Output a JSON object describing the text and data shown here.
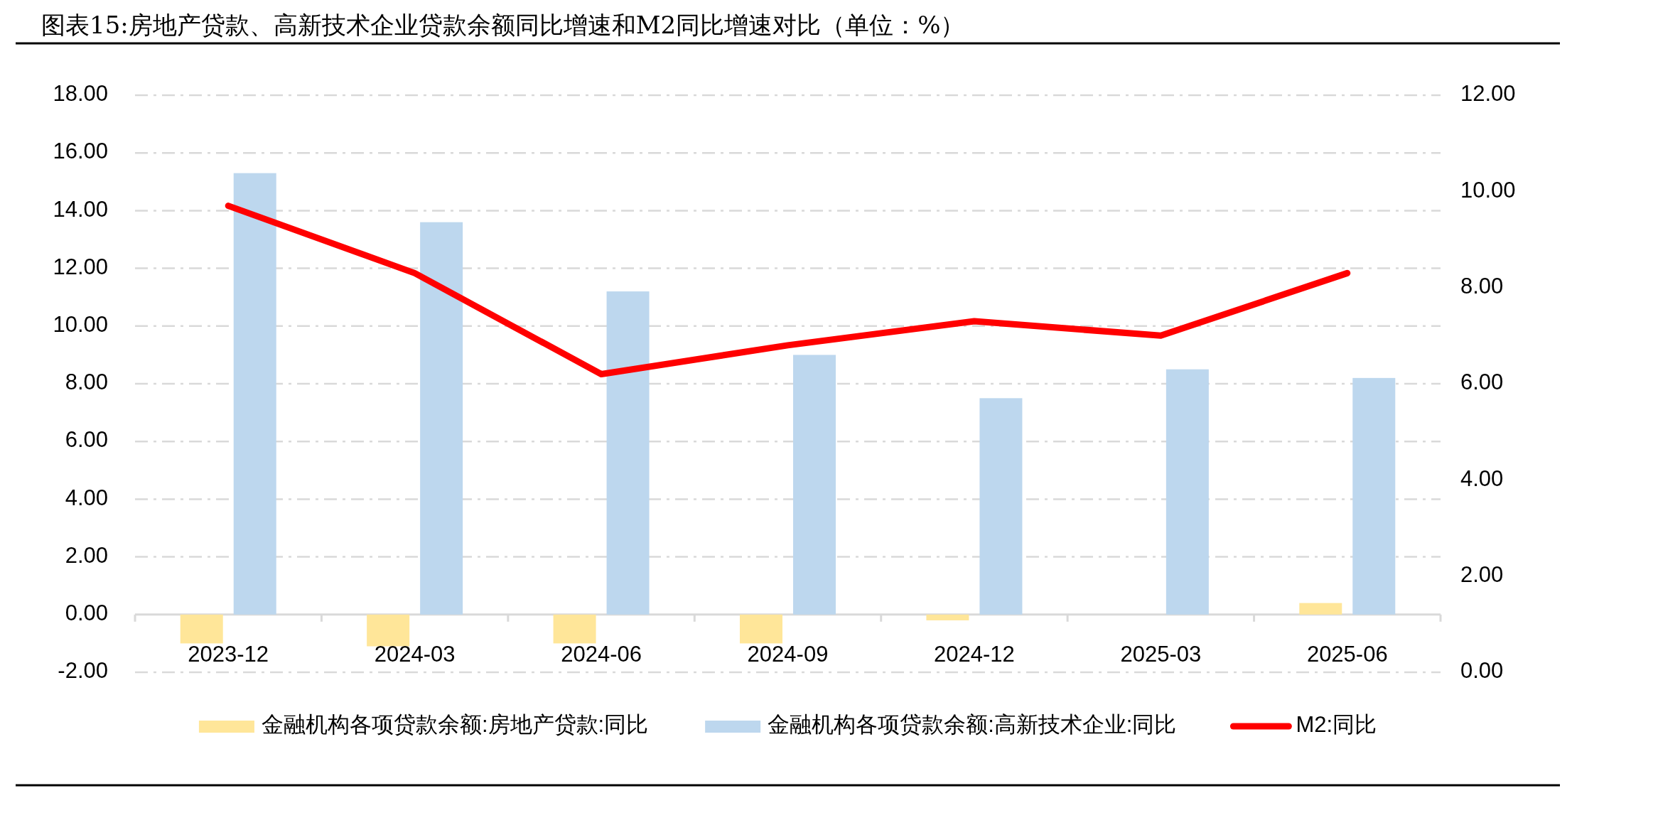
{
  "chart_data": {
    "type": "bar",
    "title": "图表15:房地产贷款、高新技术企业贷款余额同比增速和M2同比增速对比（单位：%）",
    "categories": [
      "2023-12",
      "2024-03",
      "2024-06",
      "2024-09",
      "2024-12",
      "2025-03",
      "2025-06"
    ],
    "series": [
      {
        "name": "金融机构各项贷款余额:房地产贷款:同比",
        "color": "#ffe699",
        "values": [
          -1.0,
          -1.1,
          -1.0,
          -1.0,
          -0.2,
          0,
          0.4
        ]
      },
      {
        "name": "金融机构各项贷款余额:高新技术企业:同比",
        "color": "#bdd7ee",
        "values": [
          15.3,
          13.6,
          11.2,
          9.0,
          7.5,
          8.5,
          8.2
        ]
      },
      {
        "name": "M2:同比",
        "type": "line",
        "axis": "y2",
        "color": "#ff0000",
        "values": [
          9.7,
          8.3,
          6.2,
          6.8,
          7.3,
          7.0,
          8.3
        ]
      }
    ],
    "ylim": [
      -2,
      18
    ],
    "yticks": [
      {
        "value": -2,
        "label": "-2.00"
      },
      {
        "value": 0,
        "label": "0.00"
      },
      {
        "value": 2,
        "label": "2.00"
      },
      {
        "value": 4,
        "label": "4.00"
      },
      {
        "value": 6,
        "label": "6.00"
      },
      {
        "value": 8,
        "label": "8.00"
      },
      {
        "value": 10,
        "label": "10.00"
      },
      {
        "value": 12,
        "label": "12.00"
      },
      {
        "value": 14,
        "label": "14.00"
      },
      {
        "value": 16,
        "label": "16.00"
      },
      {
        "value": 18,
        "label": "18.00"
      }
    ],
    "y2lim": [
      0,
      12
    ],
    "y2ticks": [
      {
        "value": 0,
        "label": "0.00"
      },
      {
        "value": 2,
        "label": "2.00"
      },
      {
        "value": 4,
        "label": "4.00"
      },
      {
        "value": 6,
        "label": "6.00"
      },
      {
        "value": 8,
        "label": "8.00"
      },
      {
        "value": 10,
        "label": "10.00"
      },
      {
        "value": 12,
        "label": "12.00"
      }
    ],
    "grid": "y",
    "legend": "bottom"
  }
}
